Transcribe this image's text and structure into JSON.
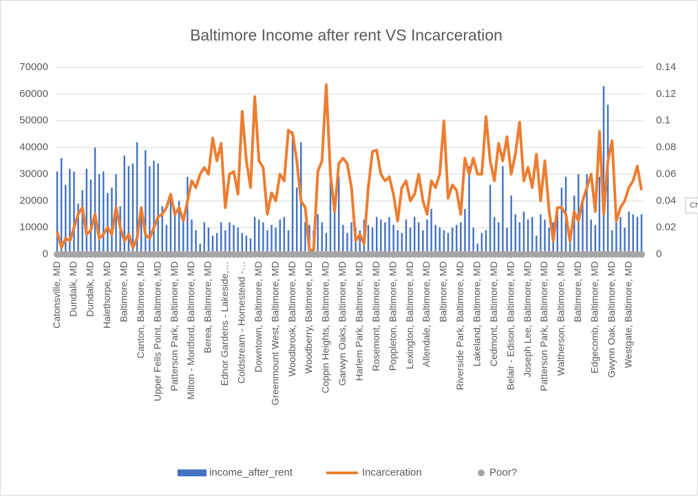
{
  "chart_data": {
    "type": "bar_line",
    "title": "Baltimore Income after rent VS Incarceration",
    "tooltip": "Ch",
    "categories": [
      "Catonsville, MD",
      null,
      null,
      null,
      "Dundalk, MD",
      null,
      null,
      null,
      "Dundalk, MD",
      null,
      null,
      null,
      "Halethorpe, MD",
      null,
      null,
      null,
      "Baltimore, MD",
      null,
      null,
      null,
      "Canton, Baltimore, MD",
      null,
      null,
      null,
      "Upper Fells Point, Baltimore, MD",
      null,
      null,
      null,
      "Patterson Park, Baltimore, MD",
      null,
      null,
      null,
      "Milton - Montford, Baltimore, MD",
      null,
      null,
      null,
      "Berea, Baltimore, MD",
      null,
      null,
      null,
      "Ednor Gardens - Lakeside,…",
      null,
      null,
      null,
      "Coldstream - Homestead -…",
      null,
      null,
      null,
      "Downtown, Baltimore, MD",
      null,
      null,
      null,
      "Greenmount West, Baltimore, MD",
      null,
      null,
      null,
      "Woodbrook, Baltimore, MD",
      null,
      null,
      null,
      "Woodberry, Baltimore, MD",
      null,
      null,
      null,
      "Coppin Heights, Baltimore, MD",
      null,
      null,
      null,
      "Garwyn Oaks, Baltimore, MD",
      null,
      null,
      null,
      "Harlem Park, Baltimore, MD",
      null,
      null,
      null,
      "Rosemont, Baltimore, MD",
      null,
      null,
      null,
      "Poppleton, Baltimore, MD",
      null,
      null,
      null,
      "Lexington, Baltimore, MD",
      null,
      null,
      null,
      "Allendale, Baltimore, MD",
      null,
      null,
      null,
      "Baltimore, MD",
      null,
      null,
      null,
      "Riverside Park, Baltimore, MD",
      null,
      null,
      null,
      "Lakeland, Baltimore, MD",
      null,
      null,
      null,
      "Cedmont, Baltimore, MD",
      null,
      null,
      null,
      "Belair - Edison, Baltimore, MD",
      null,
      null,
      null,
      "Joseph Lee, Baltimore, MD",
      null,
      null,
      null,
      "Patterson Park, Baltimore, MD",
      null,
      null,
      null,
      "Waltherson, Baltimore, MD",
      null,
      null,
      null,
      "Baltimore, MD",
      null,
      null,
      null,
      "Edgecomb, Baltimore, MD",
      null,
      null,
      null,
      "Gwynn Oak, Baltimore, MD",
      null,
      null,
      null,
      "Westgate, Baltimore, MD",
      null,
      null,
      null
    ],
    "series": [
      {
        "name": "income_after_rent",
        "color": "#4472c4",
        "kind": "bar",
        "values": [
          31000,
          36000,
          26000,
          32000,
          31000,
          19000,
          24000,
          32000,
          28000,
          40000,
          30000,
          31000,
          23000,
          25000,
          30000,
          18000,
          37000,
          33000,
          34000,
          42000,
          15000,
          39000,
          33000,
          35000,
          34000,
          18000,
          11000,
          22000,
          16000,
          20000,
          14000,
          29000,
          13000,
          9000,
          4000,
          12000,
          10000,
          7000,
          8000,
          12000,
          9000,
          12000,
          11000,
          10000,
          8000,
          7000,
          6000,
          14000,
          13000,
          12000,
          9000,
          11000,
          10000,
          13000,
          14000,
          9000,
          46000,
          25000,
          42000,
          12000,
          11000,
          9000,
          15000,
          12000,
          8000,
          27000,
          22000,
          29000,
          11000,
          8000,
          12000,
          10000,
          9000,
          13000,
          11000,
          10000,
          14000,
          13000,
          12000,
          14000,
          11000,
          9000,
          8000,
          13000,
          10000,
          14000,
          12000,
          9000,
          13000,
          17000,
          11000,
          10000,
          9000,
          8000,
          10000,
          11000,
          12000,
          17000,
          33000,
          10000,
          4000,
          8000,
          9000,
          26000,
          14000,
          12000,
          33000,
          10000,
          22000,
          15000,
          12000,
          16000,
          13000,
          14000,
          7000,
          15000,
          13000,
          10000,
          12000,
          17000,
          25000,
          29000,
          8000,
          22000,
          30000,
          19000,
          30000,
          13000,
          11000,
          29000,
          63000,
          56000,
          9000,
          12000,
          14000,
          10000,
          16000,
          15000,
          14000,
          15000
        ]
      },
      {
        "name": "Incarceration",
        "color": "#ed7d31",
        "kind": "line",
        "axis": "y2",
        "values": [
          0.017,
          0.005,
          0.012,
          0.01,
          0.02,
          0.03,
          0.035,
          0.015,
          0.018,
          0.03,
          0.012,
          0.015,
          0.02,
          0.015,
          0.035,
          0.02,
          0.01,
          0.015,
          0.005,
          0.012,
          0.035,
          0.015,
          0.012,
          0.02,
          0.028,
          0.03,
          0.035,
          0.045,
          0.03,
          0.035,
          0.025,
          0.04,
          0.055,
          0.05,
          0.06,
          0.065,
          0.06,
          0.087,
          0.07,
          0.083,
          0.035,
          0.06,
          0.062,
          0.045,
          0.107,
          0.07,
          0.05,
          0.118,
          0.07,
          0.065,
          0.03,
          0.046,
          0.04,
          0.06,
          0.055,
          0.093,
          0.09,
          0.07,
          0.04,
          0.035,
          0.003,
          0.003,
          0.062,
          0.07,
          0.127,
          0.06,
          0.032,
          0.068,
          0.072,
          0.068,
          0.05,
          0.01,
          0.015,
          0.008,
          0.05,
          0.077,
          0.078,
          0.06,
          0.055,
          0.058,
          0.045,
          0.025,
          0.05,
          0.055,
          0.04,
          0.045,
          0.06,
          0.04,
          0.03,
          0.055,
          0.05,
          0.06,
          0.1,
          0.042,
          0.052,
          0.048,
          0.03,
          0.072,
          0.06,
          0.072,
          0.06,
          0.06,
          0.103,
          0.07,
          0.055,
          0.083,
          0.07,
          0.088,
          0.06,
          0.075,
          0.099,
          0.055,
          0.065,
          0.05,
          0.075,
          0.04,
          0.07,
          0.033,
          0.01,
          0.035,
          0.035,
          0.03,
          0.01,
          0.032,
          0.025,
          0.04,
          0.05,
          0.06,
          0.032,
          0.092,
          0.03,
          0.07,
          0.085,
          0.025,
          0.035,
          0.04,
          0.05,
          0.055,
          0.066,
          0.048
        ]
      },
      {
        "name": "Poor?",
        "color": "#a5a5a5",
        "kind": "dot",
        "values": [
          0,
          0,
          0,
          0,
          0,
          0,
          0,
          0,
          0,
          0,
          0,
          0,
          0,
          0,
          0,
          0,
          0,
          0,
          0,
          0,
          0,
          0,
          0,
          0,
          0,
          0,
          0,
          0,
          0,
          0,
          0,
          0,
          0,
          0,
          0,
          0,
          0,
          0,
          0,
          0,
          0,
          0,
          0,
          0,
          0,
          0,
          0,
          0,
          0,
          0,
          0,
          0,
          0,
          0,
          0,
          0,
          0,
          0,
          0,
          0,
          0,
          0,
          0,
          0,
          0,
          0,
          0,
          0,
          0,
          0,
          0,
          0,
          0,
          0,
          0,
          0,
          0,
          0,
          0,
          0,
          0,
          0,
          0,
          0,
          0,
          0,
          0,
          0,
          0,
          0,
          0,
          0,
          0,
          0,
          0,
          0,
          0,
          0,
          0,
          0,
          0,
          0,
          0,
          0,
          0,
          0,
          0,
          0,
          0,
          0,
          0,
          0,
          0,
          0,
          0,
          0,
          0,
          0,
          0,
          0,
          0,
          0,
          0,
          0,
          0,
          0,
          0,
          0,
          0,
          0,
          0,
          0,
          0,
          0,
          0,
          0,
          0,
          0,
          0,
          0
        ]
      }
    ],
    "ylim": [
      0,
      70000
    ],
    "yticks": [
      0,
      10000,
      20000,
      30000,
      40000,
      50000,
      60000,
      70000
    ],
    "y2lim": [
      0,
      0.14
    ],
    "y2ticks": [
      0,
      0.02,
      0.04,
      0.06,
      0.08,
      0.1,
      0.12,
      0.14
    ],
    "grid": true,
    "legend": "bottom"
  }
}
